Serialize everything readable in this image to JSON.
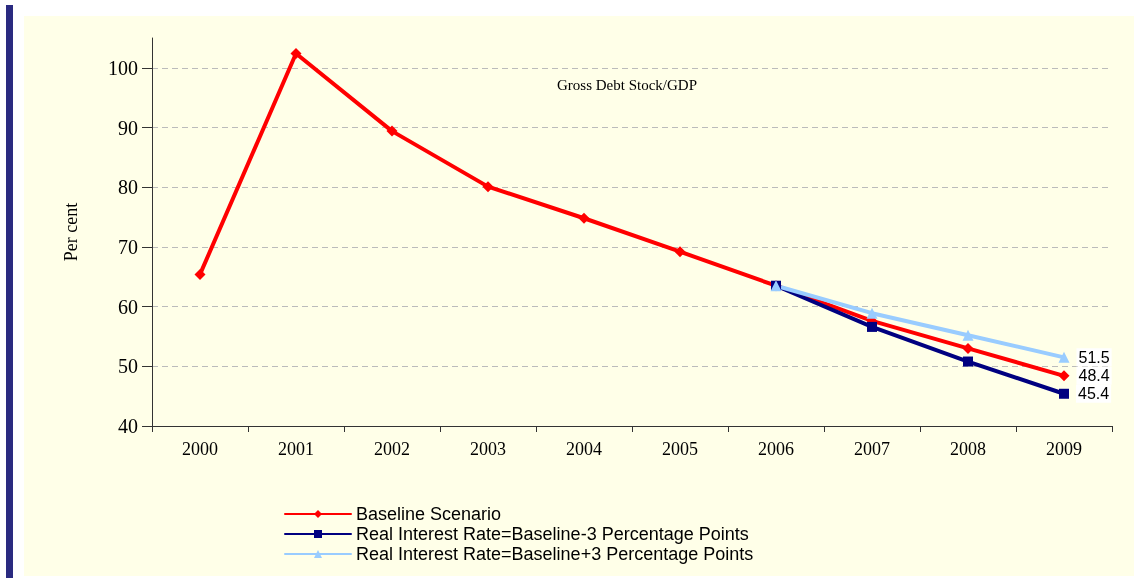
{
  "chart_data": {
    "type": "line",
    "title": "Gross Debt Stock/GDP",
    "ylabel": "Per cent",
    "categories": [
      "2000",
      "2001",
      "2002",
      "2003",
      "2004",
      "2005",
      "2006",
      "2007",
      "2008",
      "2009"
    ],
    "series": [
      {
        "name": "Baseline Scenario",
        "color": "#ff0000",
        "marker": "diamond",
        "values": [
          65.4,
          102.4,
          89.4,
          80.1,
          74.8,
          69.2,
          63.5,
          57.6,
          53.0,
          48.4
        ],
        "value_labels": [
          null,
          null,
          null,
          null,
          null,
          null,
          null,
          null,
          null,
          "48.4"
        ]
      },
      {
        "name": "Real Interest Rate=Baseline-3 Percentage Points",
        "color": "#000080",
        "marker": "square",
        "values": [
          null,
          null,
          null,
          null,
          null,
          null,
          63.5,
          56.6,
          50.8,
          45.4
        ],
        "value_labels": [
          null,
          null,
          null,
          null,
          null,
          null,
          null,
          null,
          null,
          "45.4"
        ]
      },
      {
        "name": "Real Interest Rate=Baseline+3 Percentage Points",
        "color": "#99ccff",
        "marker": "triangle",
        "values": [
          null,
          null,
          null,
          null,
          null,
          null,
          63.5,
          58.9,
          55.2,
          51.5
        ],
        "value_labels": [
          null,
          null,
          null,
          null,
          null,
          null,
          null,
          null,
          null,
          "51.5"
        ]
      }
    ],
    "ylim": [
      40,
      105
    ],
    "yticks": [
      40,
      50,
      60,
      70,
      80,
      90,
      100
    ],
    "grid": "y",
    "legend": "bottom",
    "line_style": "solid"
  }
}
